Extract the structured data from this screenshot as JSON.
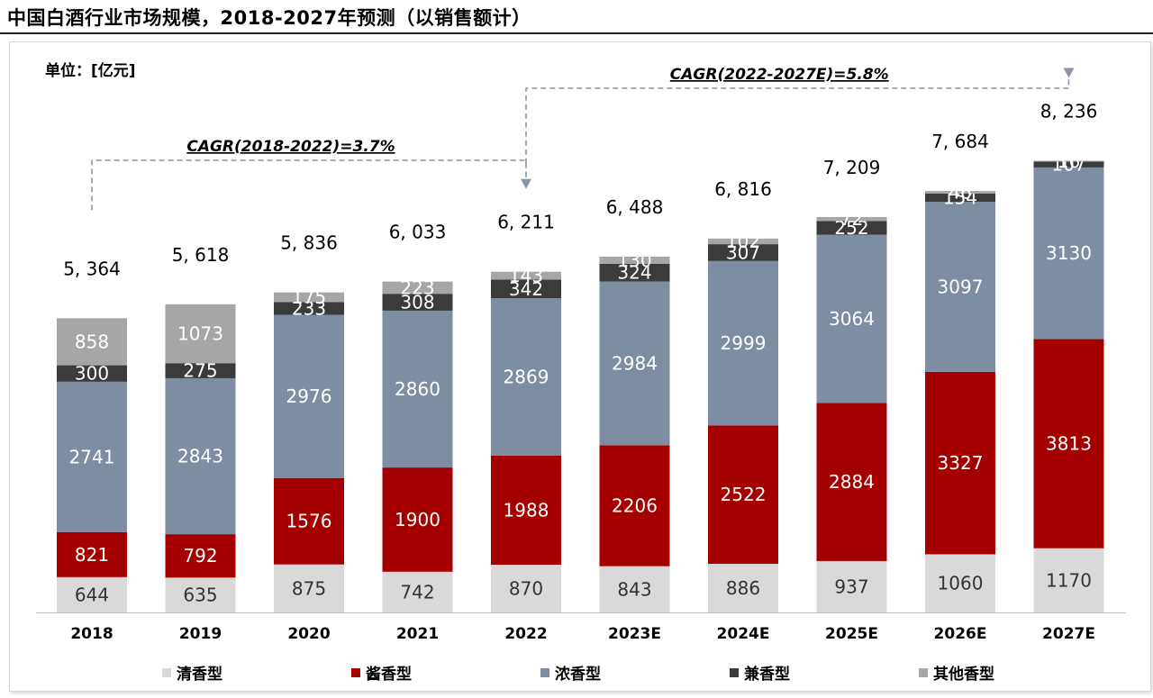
{
  "title": "中国白酒行业市场规模，2018-2027年预测（以销售额计）",
  "unit_label": "单位：[亿元]",
  "chart_data": {
    "type": "bar",
    "stacked": true,
    "categories": [
      "2018",
      "2019",
      "2020",
      "2021",
      "2022",
      "2023E",
      "2024E",
      "2025E",
      "2026E",
      "2027E"
    ],
    "series": [
      {
        "name": "清香型",
        "color": "#d9d9d9",
        "label_color": "#333333",
        "values": [
          644,
          635,
          875,
          742,
          870,
          843,
          886,
          937,
          1060,
          1170
        ]
      },
      {
        "name": "酱香型",
        "color": "#a50000",
        "label_color": "#ffffff",
        "values": [
          821,
          792,
          1576,
          1900,
          1988,
          2206,
          2522,
          2884,
          3327,
          3813
        ]
      },
      {
        "name": "浓香型",
        "color": "#7f8da3",
        "label_color": "#ffffff",
        "values": [
          2741,
          2843,
          2976,
          2860,
          2869,
          2984,
          2999,
          3064,
          3097,
          3130
        ]
      },
      {
        "name": "兼香型",
        "color": "#3b3b3b",
        "label_color": "#ffffff",
        "values": [
          300,
          275,
          233,
          308,
          342,
          324,
          307,
          252,
          154,
          107
        ]
      },
      {
        "name": "其他香型",
        "color": "#a6a6a6",
        "label_color": "#ffffff",
        "values": [
          858,
          1073,
          175,
          223,
          143,
          130,
          102,
          72,
          46,
          16
        ]
      }
    ],
    "totals": [
      "5, 364",
      "5, 618",
      "5, 836",
      "6, 033",
      "6, 211",
      "6, 488",
      "6, 816",
      "7, 209",
      "7, 684",
      "8, 236"
    ],
    "annotations": [
      {
        "text": "CAGR(2018-2022)=3.7%",
        "from": "2018",
        "to": "2022"
      },
      {
        "text": "CAGR(2022-2027E)=5.8%",
        "from": "2022",
        "to": "2027E"
      }
    ],
    "legend_position": "bottom",
    "grid": false
  }
}
